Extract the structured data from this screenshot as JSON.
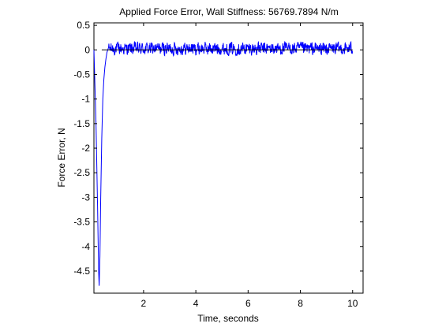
{
  "chart_data": {
    "type": "line",
    "title": "Applied Force Error, Wall Stiffness: 56769.7894 N/m",
    "xlabel": "Time, seconds",
    "ylabel": "Force Error, N",
    "xlim": [
      0.1,
      10.4
    ],
    "ylim": [
      -4.95,
      0.55
    ],
    "xticks": [
      2,
      4,
      6,
      8,
      10
    ],
    "yticks": [
      0.5,
      0,
      -0.5,
      -1,
      -1.5,
      -2,
      -2.5,
      -3,
      -3.5,
      -4,
      -4.5
    ],
    "grid": false,
    "legend": "none",
    "series": [
      {
        "color": "#0000ff",
        "description": "transient: drops to about -4.8 N near t=0.3 s, recovers to 0 by t~0.6 s, then noisy steady state",
        "transient": [
          [
            0.1,
            0.0
          ],
          [
            0.18,
            -1.5
          ],
          [
            0.24,
            -3.2
          ],
          [
            0.28,
            -4.5
          ],
          [
            0.3,
            -4.8
          ],
          [
            0.33,
            -4.2
          ],
          [
            0.36,
            -3.0
          ],
          [
            0.4,
            -1.8
          ],
          [
            0.44,
            -1.0
          ],
          [
            0.48,
            -0.6
          ],
          [
            0.52,
            -0.35
          ],
          [
            0.56,
            -0.18
          ],
          [
            0.6,
            -0.05
          ],
          [
            0.66,
            0.05
          ]
        ],
        "noise_start": 0.66,
        "noise_end": 10.0,
        "noise_amplitude": 0.22,
        "steady_mean": 0.02
      }
    ],
    "reference_line": {
      "y": 0,
      "x": [
        0.4,
        10.0
      ],
      "color": "#000000"
    }
  },
  "colors": {
    "line": "#0000ff",
    "axes": "#000000",
    "background": "#ffffff"
  }
}
